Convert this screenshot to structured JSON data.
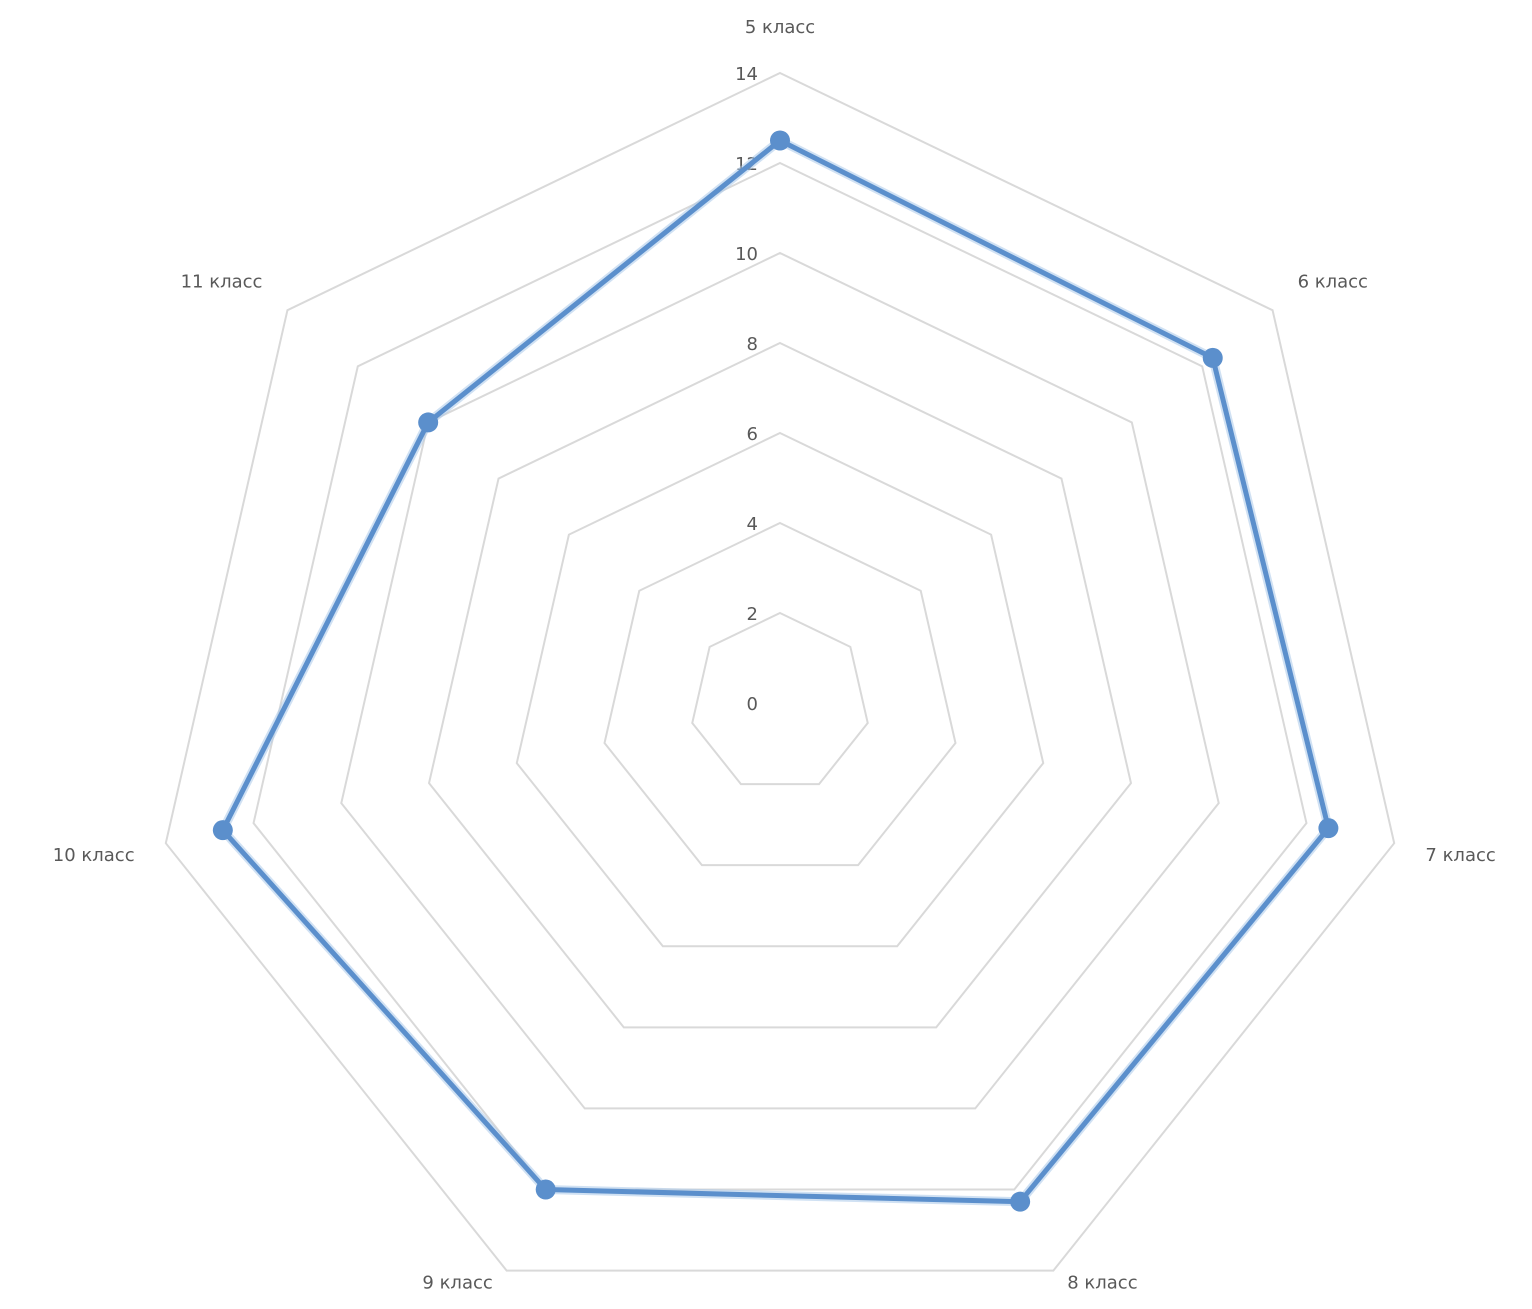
{
  "chart_data": {
    "type": "radar",
    "categories": [
      "5 класс",
      "6 класс",
      "7 класс",
      "8 класс",
      "9 класс",
      "10 класс",
      "11 класс"
    ],
    "series": [
      {
        "values": [
          12.5,
          12.3,
          12.5,
          12.3,
          12.0,
          12.7,
          10.0
        ]
      }
    ],
    "rlim": [
      0,
      14
    ],
    "r_ticks": [
      "0",
      "2",
      "4",
      "6",
      "8",
      "10",
      "12",
      "14"
    ],
    "legend": "none",
    "grid": true,
    "colors": {
      "series": "#5b8fcc",
      "grid": "#d9d9d9",
      "text": "#595959"
    }
  }
}
